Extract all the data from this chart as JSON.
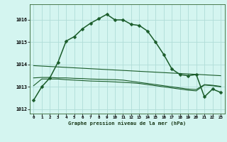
{
  "bg_color": "#d4f5f0",
  "grid_color": "#b0ddd8",
  "line_color": "#1a5c2a",
  "title": "Graphe pression niveau de la mer (hPa)",
  "xlim": [
    -0.5,
    23.5
  ],
  "ylim": [
    1011.8,
    1016.7
  ],
  "yticks": [
    1012,
    1013,
    1014,
    1015,
    1016
  ],
  "xticks": [
    0,
    1,
    2,
    3,
    4,
    5,
    6,
    7,
    8,
    9,
    10,
    11,
    12,
    13,
    14,
    15,
    16,
    17,
    18,
    19,
    20,
    21,
    22,
    23
  ],
  "series": [
    {
      "x": [
        0,
        1,
        2,
        3,
        4,
        5,
        6,
        7,
        8,
        9,
        10,
        11,
        12,
        13,
        14,
        15,
        16,
        17,
        18,
        19,
        20,
        21,
        22,
        23
      ],
      "y": [
        1012.4,
        1013.0,
        1013.4,
        1014.1,
        1015.05,
        1015.25,
        1015.6,
        1015.85,
        1016.05,
        1016.25,
        1016.0,
        1016.0,
        1015.8,
        1015.75,
        1015.5,
        1015.0,
        1014.45,
        1013.8,
        1013.55,
        1013.5,
        1013.55,
        1012.55,
        1012.9,
        1012.75
      ],
      "marker": "D",
      "markersize": 2.5,
      "linewidth": 1.1
    },
    {
      "x": [
        0,
        1,
        2,
        3,
        4,
        5,
        6,
        7,
        8,
        9,
        10,
        11,
        12,
        13,
        14,
        15,
        16,
        17,
        18,
        19,
        20,
        21,
        22,
        23
      ],
      "y": [
        1013.05,
        1013.35,
        1013.35,
        1013.35,
        1013.32,
        1013.3,
        1013.28,
        1013.26,
        1013.25,
        1013.24,
        1013.22,
        1013.2,
        1013.18,
        1013.15,
        1013.1,
        1013.05,
        1013.0,
        1012.95,
        1012.9,
        1012.85,
        1012.82,
        1013.08,
        1013.05,
        1013.0
      ],
      "marker": null,
      "linewidth": 0.8
    },
    {
      "x": [
        0,
        1,
        2,
        3,
        4,
        5,
        6,
        7,
        8,
        9,
        10,
        11,
        12,
        13,
        14,
        15,
        16,
        17,
        18,
        19,
        20,
        21,
        22,
        23
      ],
      "y": [
        1013.4,
        1013.42,
        1013.42,
        1013.4,
        1013.4,
        1013.38,
        1013.37,
        1013.35,
        1013.34,
        1013.33,
        1013.32,
        1013.3,
        1013.25,
        1013.2,
        1013.15,
        1013.1,
        1013.05,
        1013.0,
        1012.95,
        1012.9,
        1012.88,
        1013.1,
        1013.07,
        1013.02
      ],
      "marker": null,
      "linewidth": 0.8
    },
    {
      "x": [
        0,
        23
      ],
      "y": [
        1013.95,
        1013.5
      ],
      "marker": null,
      "linewidth": 0.8
    }
  ]
}
